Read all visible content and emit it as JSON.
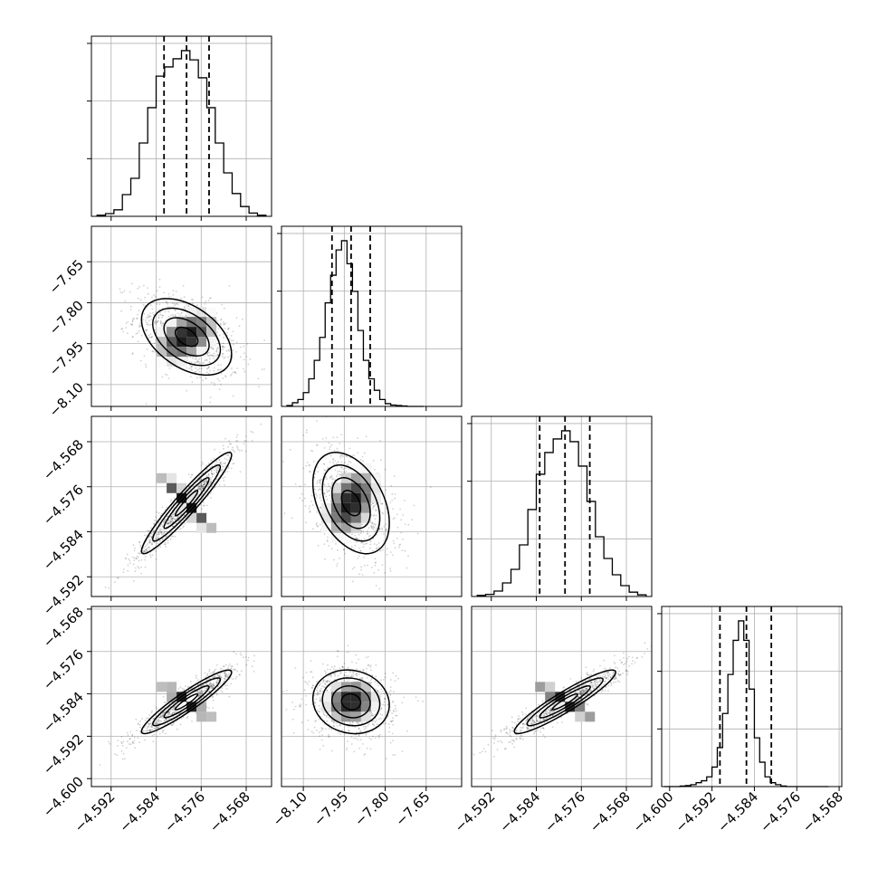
{
  "chart_data": {
    "type": "scatter",
    "subtype": "corner-plot",
    "title": "",
    "parameters": 4,
    "axis_labels": [
      "",
      "",
      "",
      ""
    ],
    "grid": true,
    "colors": {
      "marks": "#000000",
      "grid": "#b0b0b0",
      "background": "#ffffff"
    },
    "ranges": [
      [
        -4.5955,
        -4.5635
      ],
      [
        -8.18,
        -7.52
      ],
      [
        -4.5955,
        -4.5635
      ],
      [
        -4.6015,
        -4.5675
      ]
    ],
    "x_ticks": [
      [
        "−4.592",
        "−4.584",
        "−4.576",
        "−4.568"
      ],
      [
        "−8.10",
        "−7.95",
        "−7.80",
        "−7.65"
      ],
      [
        "−4.592",
        "−4.584",
        "−4.576",
        "−4.568"
      ],
      [
        "−4.600",
        "−4.592",
        "−4.584",
        "−4.576",
        "−4.568"
      ]
    ],
    "x_tick_values": [
      [
        -4.592,
        -4.584,
        -4.576,
        -4.568
      ],
      [
        -8.1,
        -7.95,
        -7.8,
        -7.65
      ],
      [
        -4.592,
        -4.584,
        -4.576,
        -4.568
      ],
      [
        -4.6,
        -4.592,
        -4.584,
        -4.576,
        -4.568
      ]
    ],
    "y_ticks": [
      [],
      [
        "−7.65",
        "−7.80",
        "−7.95",
        "−8.10"
      ],
      [
        "−4.568",
        "−4.576",
        "−4.584",
        "−4.592"
      ],
      [
        "−4.568",
        "−4.576",
        "−4.584",
        "−4.592",
        "−4.600"
      ]
    ],
    "y_tick_values": [
      [],
      [
        -7.65,
        -7.8,
        -7.95,
        -8.1
      ],
      [
        -4.568,
        -4.576,
        -4.584,
        -4.592
      ],
      [
        -4.568,
        -4.576,
        -4.584,
        -4.592,
        -4.6
      ]
    ],
    "marginals": [
      {
        "param": 0,
        "quantiles": [
          -4.5826,
          -4.5786,
          -4.5746
        ],
        "bin_edges": [
          -4.5945,
          -4.593,
          -4.5915,
          -4.59,
          -4.5885,
          -4.587,
          -4.5855,
          -4.584,
          -4.5825,
          -4.581,
          -4.5795,
          -4.578,
          -4.5765,
          -4.575,
          -4.5735,
          -4.572,
          -4.5705,
          -4.569,
          -4.5675,
          -4.566,
          -4.5645
        ],
        "counts": [
          2,
          5,
          12,
          40,
          70,
          135,
          200,
          258,
          275,
          290,
          305,
          288,
          255,
          200,
          135,
          80,
          42,
          18,
          6,
          2
        ]
      },
      {
        "param": 1,
        "quantiles": [
          -7.995,
          -7.925,
          -7.855
        ],
        "bin_edges": [
          -8.16,
          -8.14,
          -8.12,
          -8.1,
          -8.08,
          -8.06,
          -8.04,
          -8.02,
          -8.0,
          -7.98,
          -7.96,
          -7.94,
          -7.92,
          -7.9,
          -7.88,
          -7.86,
          -7.84,
          -7.82,
          -7.8,
          -7.78,
          -7.76,
          -7.74,
          -7.72,
          -7.7,
          -7.68,
          -7.66
        ],
        "counts": [
          2,
          8,
          15,
          30,
          60,
          100,
          150,
          225,
          285,
          340,
          360,
          310,
          250,
          165,
          100,
          60,
          35,
          15,
          6,
          3,
          2,
          1,
          0,
          0,
          0
        ]
      },
      {
        "param": 2,
        "quantiles": [
          -4.5834,
          -4.5789,
          -4.5745
        ],
        "bin_edges": [
          -4.5945,
          -4.593,
          -4.5915,
          -4.59,
          -4.5885,
          -4.587,
          -4.5855,
          -4.584,
          -4.5825,
          -4.581,
          -4.5795,
          -4.578,
          -4.5765,
          -4.575,
          -4.5735,
          -4.572,
          -4.5705,
          -4.569,
          -4.5675,
          -4.566,
          -4.5645
        ],
        "counts": [
          2,
          4,
          10,
          25,
          50,
          95,
          160,
          225,
          265,
          290,
          305,
          285,
          240,
          175,
          110,
          70,
          40,
          20,
          8,
          3
        ]
      },
      {
        "param": 3,
        "quantiles": [
          -4.5905,
          -4.5855,
          -4.5808
        ],
        "bin_edges": [
          -4.601,
          -4.6,
          -4.599,
          -4.598,
          -4.597,
          -4.596,
          -4.595,
          -4.594,
          -4.593,
          -4.592,
          -4.591,
          -4.59,
          -4.589,
          -4.588,
          -4.587,
          -4.586,
          -4.585,
          -4.584,
          -4.583,
          -4.582,
          -4.581,
          -4.58,
          -4.579,
          -4.578,
          -4.577,
          -4.576,
          -4.575,
          -4.574,
          -4.573,
          -4.572,
          -4.571,
          -4.57
        ],
        "counts": [
          0,
          0,
          0,
          1,
          2,
          4,
          8,
          12,
          20,
          40,
          80,
          150,
          230,
          300,
          340,
          300,
          200,
          100,
          50,
          20,
          8,
          4,
          1,
          0,
          0,
          0,
          0,
          0,
          0,
          0,
          0
        ]
      }
    ],
    "pairs": [
      {
        "x_param": 0,
        "y_param": 1,
        "center": [
          -4.5786,
          -7.925
        ],
        "sigma": [
          0.004,
          0.07
        ],
        "corr": -0.45
      },
      {
        "x_param": 0,
        "y_param": 2,
        "center": [
          -4.5786,
          -4.5789
        ],
        "sigma": [
          0.004,
          0.0045
        ],
        "corr": 0.95
      },
      {
        "x_param": 1,
        "y_param": 2,
        "center": [
          -7.925,
          -4.5789
        ],
        "sigma": [
          0.07,
          0.0045
        ],
        "corr": -0.4
      },
      {
        "x_param": 0,
        "y_param": 3,
        "center": [
          -4.5786,
          -4.5855
        ],
        "sigma": [
          0.004,
          0.003
        ],
        "corr": 0.93
      },
      {
        "x_param": 1,
        "y_param": 3,
        "center": [
          -7.925,
          -4.5855
        ],
        "sigma": [
          0.07,
          0.003
        ],
        "corr": -0.1
      },
      {
        "x_param": 2,
        "y_param": 3,
        "center": [
          -4.5789,
          -4.5855
        ],
        "sigma": [
          0.0045,
          0.003
        ],
        "corr": 0.93
      }
    ]
  }
}
